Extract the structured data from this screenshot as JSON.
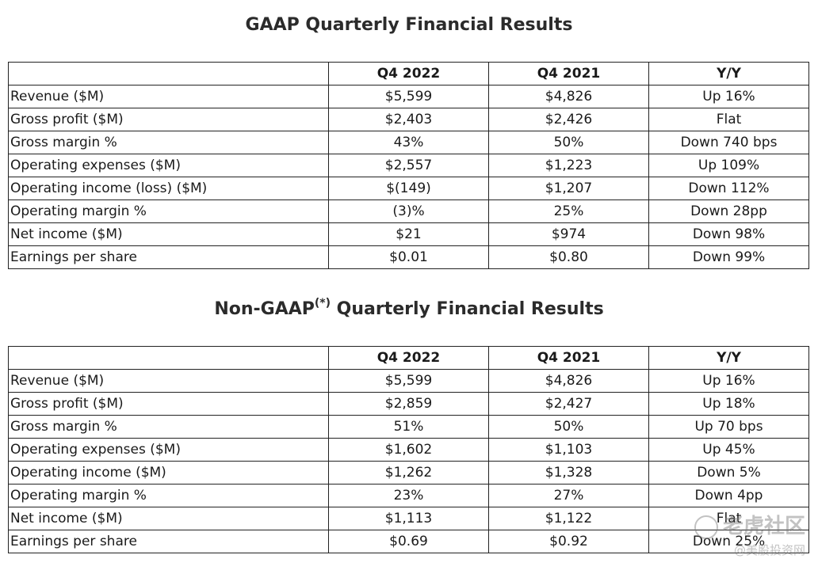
{
  "gaap": {
    "title": "GAAP Quarterly Financial Results",
    "headers": [
      "",
      "Q4 2022",
      "Q4 2021",
      "Y/Y"
    ],
    "rows": [
      [
        "Revenue ($M)",
        "$5,599",
        "$4,826",
        "Up 16%"
      ],
      [
        "Gross profit ($M)",
        "$2,403",
        "$2,426",
        "Flat"
      ],
      [
        "Gross margin %",
        "43%",
        "50%",
        "Down 740 bps"
      ],
      [
        "Operating expenses ($M)",
        "$2,557",
        "$1,223",
        "Up 109%"
      ],
      [
        "Operating income (loss) ($M)",
        "$(149)",
        "$1,207",
        "Down 112%"
      ],
      [
        "Operating margin %",
        "(3)%",
        "25%",
        "Down 28pp"
      ],
      [
        "Net income ($M)",
        "$21",
        "$974",
        "Down 98%"
      ],
      [
        "Earnings per share",
        "$0.01",
        "$0.80",
        "Down 99%"
      ]
    ]
  },
  "nongaap": {
    "title_prefix": "Non-GAAP",
    "title_sup": "(*)",
    "title_suffix": " Quarterly Financial Results",
    "headers": [
      "",
      "Q4 2022",
      "Q4 2021",
      "Y/Y"
    ],
    "rows": [
      [
        "Revenue ($M)",
        "$5,599",
        "$4,826",
        "Up 16%"
      ],
      [
        "Gross profit ($M)",
        "$2,859",
        "$2,427",
        "Up 18%"
      ],
      [
        "Gross margin %",
        "51%",
        "50%",
        "Up 70 bps"
      ],
      [
        "Operating expenses ($M)",
        "$1,602",
        "$1,103",
        "Up 45%"
      ],
      [
        "Operating income ($M)",
        "$1,262",
        "$1,328",
        "Down 5%"
      ],
      [
        "Operating margin %",
        "23%",
        "27%",
        "Down 4pp"
      ],
      [
        "Net income ($M)",
        "$1,113",
        "$1,122",
        "Flat"
      ],
      [
        "Earnings per share",
        "$0.69",
        "$0.92",
        "Down 25%"
      ]
    ]
  },
  "watermark": {
    "logo_text": "老虎社区",
    "sub_text": "@美股投资网"
  }
}
